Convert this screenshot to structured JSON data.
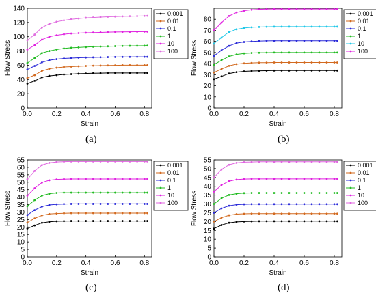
{
  "chart_data": [
    {
      "type": "line",
      "panel_label": "(a)",
      "xlabel": "Strain",
      "ylabel": "Flow Stress",
      "xlim": [
        0,
        0.85
      ],
      "ylim": [
        0,
        140
      ],
      "xticks": [
        "0.0",
        "0.2",
        "0.4",
        "0.6",
        "0.8"
      ],
      "yticks": [
        "0",
        "20",
        "40",
        "60",
        "80",
        "100",
        "120",
        "140"
      ],
      "x": [
        0.0,
        0.05,
        0.1,
        0.15,
        0.2,
        0.25,
        0.3,
        0.35,
        0.4,
        0.45,
        0.5,
        0.55,
        0.6,
        0.65,
        0.7,
        0.75,
        0.8,
        0.82
      ],
      "legend_position": "top-right",
      "series": [
        {
          "name": "0.001",
          "color": "#000000",
          "values": [
            34,
            38,
            43,
            45,
            46,
            47,
            47.5,
            48,
            48.3,
            48.6,
            48.8,
            49,
            49,
            49,
            49,
            49,
            49,
            49
          ]
        },
        {
          "name": "0.01",
          "color": "#d2691e",
          "values": [
            42,
            46,
            52,
            55,
            56.5,
            57.5,
            58,
            58.5,
            59,
            59.3,
            59.5,
            59.7,
            59.8,
            60,
            60,
            60,
            60,
            60
          ]
        },
        {
          "name": "0.1",
          "color": "#2b2bd8",
          "values": [
            54,
            59,
            64,
            67,
            68.5,
            69.5,
            70,
            70.5,
            70.8,
            71,
            71.2,
            71.4,
            71.5,
            71.6,
            71.7,
            71.8,
            71.8,
            71.8
          ]
        },
        {
          "name": "1",
          "color": "#22bb22",
          "values": [
            63,
            70,
            77,
            80,
            82,
            83.5,
            84.5,
            85,
            85.5,
            86,
            86.3,
            86.6,
            86.8,
            87,
            87.2,
            87.3,
            87.4,
            87.5
          ]
        },
        {
          "name": "10",
          "color": "#e022e0",
          "values": [
            82,
            88,
            96,
            100,
            102,
            103.5,
            104.5,
            105,
            105.5,
            105.8,
            106,
            106.3,
            106.5,
            106.7,
            106.8,
            106.9,
            107,
            107
          ]
        },
        {
          "name": "100",
          "color": "#e06ee0",
          "values": [
            95,
            103,
            113,
            118,
            121,
            123,
            124.5,
            125.5,
            126.5,
            127,
            127.5,
            128,
            128.3,
            128.6,
            128.8,
            129,
            129.2,
            129.3
          ]
        }
      ]
    },
    {
      "type": "line",
      "panel_label": "(b)",
      "xlabel": "Strain",
      "ylabel": "Flow Stress",
      "xlim": [
        0,
        0.85
      ],
      "ylim": [
        0,
        90
      ],
      "xticks": [
        "0.0",
        "0.2",
        "0.4",
        "0.6",
        "0.8"
      ],
      "yticks": [
        "0",
        "10",
        "20",
        "30",
        "40",
        "50",
        "60",
        "70",
        "80"
      ],
      "x": [
        0.0,
        0.05,
        0.1,
        0.15,
        0.2,
        0.25,
        0.3,
        0.35,
        0.4,
        0.45,
        0.5,
        0.55,
        0.6,
        0.65,
        0.7,
        0.75,
        0.8,
        0.82
      ],
      "legend_position": "top-right",
      "series": [
        {
          "name": "0.001",
          "color": "#000000",
          "values": [
            26,
            28.5,
            31,
            32.3,
            33,
            33.3,
            33.5,
            33.6,
            33.7,
            33.7,
            33.7,
            33.7,
            33.7,
            33.7,
            33.7,
            33.7,
            33.7,
            33.7
          ]
        },
        {
          "name": "0.01",
          "color": "#d2691e",
          "values": [
            32,
            35,
            38,
            39.5,
            40.2,
            40.6,
            40.8,
            40.9,
            41,
            41,
            41,
            41,
            41,
            41,
            41,
            41,
            41,
            41
          ]
        },
        {
          "name": "0.1",
          "color": "#2b2bd8",
          "values": [
            47,
            52,
            56,
            58.5,
            59.5,
            60,
            60.3,
            60.5,
            60.6,
            60.6,
            60.6,
            60.6,
            60.6,
            60.6,
            60.6,
            60.6,
            60.6,
            60.6
          ]
        },
        {
          "name": "1",
          "color": "#22bb22",
          "values": [
            39,
            43,
            46.5,
            48.3,
            49.2,
            49.6,
            49.8,
            49.9,
            50,
            50,
            50,
            50,
            50,
            50,
            50,
            50,
            50,
            50
          ]
        },
        {
          "name": "10",
          "color": "#22c8e8",
          "values": [
            58,
            63.5,
            68.5,
            71,
            72.2,
            72.8,
            73.1,
            73.3,
            73.4,
            73.4,
            73.4,
            73.4,
            73.4,
            73.4,
            73.4,
            73.4,
            73.4,
            73.4
          ]
        },
        {
          "name": "100",
          "color": "#e022e0",
          "values": [
            70,
            77,
            83,
            86.2,
            87.8,
            88.6,
            89,
            89.2,
            89.3,
            89.3,
            89.3,
            89.3,
            89.3,
            89.3,
            89.3,
            89.3,
            89.3,
            89.3
          ]
        }
      ]
    },
    {
      "type": "line",
      "panel_label": "(c)",
      "xlabel": "Strain",
      "ylabel": "Flow Stress",
      "xlim": [
        0,
        0.85
      ],
      "ylim": [
        0,
        65
      ],
      "xticks": [
        "0.0",
        "0.2",
        "0.4",
        "0.6",
        "0.8"
      ],
      "yticks": [
        "0",
        "5",
        "10",
        "15",
        "20",
        "25",
        "30",
        "35",
        "40",
        "45",
        "50",
        "55",
        "60",
        "65"
      ],
      "x": [
        0.0,
        0.05,
        0.1,
        0.15,
        0.2,
        0.25,
        0.3,
        0.35,
        0.4,
        0.45,
        0.5,
        0.55,
        0.6,
        0.65,
        0.7,
        0.75,
        0.8,
        0.82
      ],
      "legend_position": "top-right",
      "series": [
        {
          "name": "0.001",
          "color": "#000000",
          "values": [
            19,
            21,
            22.8,
            23.5,
            23.8,
            23.9,
            24,
            24,
            24,
            24,
            24,
            24,
            24,
            24,
            24,
            24,
            24,
            24
          ]
        },
        {
          "name": "0.01",
          "color": "#d2691e",
          "values": [
            23,
            25.8,
            27.8,
            28.7,
            29,
            29.2,
            29.3,
            29.3,
            29.3,
            29.3,
            29.3,
            29.3,
            29.3,
            29.3,
            29.3,
            29.3,
            29.3,
            29.3
          ]
        },
        {
          "name": "0.1",
          "color": "#2b2bd8",
          "values": [
            28,
            31.3,
            33.7,
            34.8,
            35.2,
            35.4,
            35.5,
            35.5,
            35.5,
            35.5,
            35.5,
            35.5,
            35.5,
            35.5,
            35.5,
            35.5,
            35.5,
            35.5
          ]
        },
        {
          "name": "1",
          "color": "#22bb22",
          "values": [
            34,
            38,
            41,
            42.3,
            42.8,
            43,
            43,
            43,
            43,
            43,
            43,
            43,
            43,
            43,
            43,
            43,
            43,
            43
          ]
        },
        {
          "name": "10",
          "color": "#e022e0",
          "values": [
            41,
            46,
            49.8,
            51.3,
            51.9,
            52.1,
            52.2,
            52.2,
            52.2,
            52.2,
            52.2,
            52.2,
            52.2,
            52.2,
            52.2,
            52.2,
            52.2,
            52.2
          ]
        },
        {
          "name": "100",
          "color": "#e066e0",
          "values": [
            52,
            57.5,
            61.5,
            63,
            63.6,
            63.8,
            63.9,
            63.9,
            63.9,
            63.9,
            63.9,
            63.9,
            63.9,
            63.9,
            63.9,
            63.9,
            63.9,
            63.9
          ]
        }
      ]
    },
    {
      "type": "line",
      "panel_label": "(d)",
      "xlabel": "Strain",
      "ylabel": "Flow Stress",
      "xlim": [
        0,
        0.85
      ],
      "ylim": [
        0,
        55
      ],
      "xticks": [
        "0.0",
        "0.2",
        "0.4",
        "0.6",
        "0.8"
      ],
      "yticks": [
        "0",
        "5",
        "10",
        "15",
        "20",
        "25",
        "30",
        "35",
        "40",
        "45",
        "50",
        "55"
      ],
      "x": [
        0.0,
        0.05,
        0.1,
        0.15,
        0.2,
        0.25,
        0.3,
        0.35,
        0.4,
        0.45,
        0.5,
        0.55,
        0.6,
        0.65,
        0.7,
        0.75,
        0.8,
        0.82
      ],
      "legend_position": "top-right",
      "series": [
        {
          "name": "0.001",
          "color": "#000000",
          "values": [
            16,
            18,
            19.3,
            19.8,
            20,
            20.1,
            20.2,
            20.2,
            20.2,
            20.2,
            20.2,
            20.2,
            20.2,
            20.2,
            20.2,
            20.2,
            20.2,
            20.2
          ]
        },
        {
          "name": "0.01",
          "color": "#d2691e",
          "values": [
            20,
            22.2,
            23.6,
            24.2,
            24.4,
            24.5,
            24.5,
            24.5,
            24.5,
            24.5,
            24.5,
            24.5,
            24.5,
            24.5,
            24.5,
            24.5,
            24.5,
            24.5
          ]
        },
        {
          "name": "0.1",
          "color": "#2b2bd8",
          "values": [
            25,
            27.5,
            29,
            29.6,
            29.8,
            29.9,
            29.9,
            29.9,
            29.9,
            29.9,
            29.9,
            29.9,
            29.9,
            29.9,
            29.9,
            29.9,
            29.9,
            29.9
          ]
        },
        {
          "name": "1",
          "color": "#22bb22",
          "values": [
            30,
            33.2,
            35.1,
            35.8,
            36.1,
            36.2,
            36.2,
            36.2,
            36.2,
            36.2,
            36.2,
            36.2,
            36.2,
            36.2,
            36.2,
            36.2,
            36.2,
            36.2
          ]
        },
        {
          "name": "10",
          "color": "#e022e0",
          "values": [
            37,
            40.7,
            42.9,
            43.8,
            44.1,
            44.2,
            44.2,
            44.2,
            44.2,
            44.2,
            44.2,
            44.2,
            44.2,
            44.2,
            44.2,
            44.2,
            44.2,
            44.2
          ]
        },
        {
          "name": "100",
          "color": "#e066e0",
          "values": [
            45,
            49.5,
            52.2,
            53.3,
            53.7,
            53.8,
            53.9,
            53.9,
            53.9,
            53.9,
            53.9,
            53.9,
            53.9,
            53.9,
            53.9,
            53.9,
            53.9,
            53.9
          ]
        }
      ]
    }
  ]
}
